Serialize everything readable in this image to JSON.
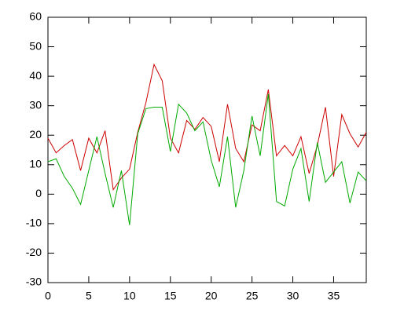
{
  "chart_data": {
    "type": "line",
    "x": [
      0,
      1,
      2,
      3,
      4,
      5,
      6,
      7,
      8,
      9,
      10,
      11,
      12,
      13,
      14,
      15,
      16,
      17,
      18,
      19,
      20,
      21,
      22,
      23,
      24,
      25,
      26,
      27,
      28,
      29,
      30,
      31,
      32,
      33,
      34,
      35,
      36,
      37,
      38,
      39
    ],
    "series": [
      {
        "color": "#cc0000",
        "values": [
          19,
          14,
          16.5,
          18.5,
          8,
          19,
          14,
          21.5,
          1.5,
          5.5,
          8.5,
          21,
          31,
          44,
          38.5,
          19,
          14,
          25,
          22,
          26,
          23,
          11,
          30.5,
          15.5,
          11,
          23.5,
          21.5,
          35.5,
          13,
          16.5,
          13,
          19.5,
          7,
          16.5,
          29.5,
          6,
          27,
          20.5,
          16,
          21
        ]
      },
      {
        "color": "#00aa00",
        "values": [
          11,
          12,
          6,
          2,
          -3.5,
          8,
          19.5,
          7,
          -4.5,
          8,
          -10.5,
          20.5,
          29,
          29.5,
          29.5,
          14.5,
          30.5,
          27.5,
          21.5,
          24.5,
          11.5,
          2.5,
          19.5,
          -4.5,
          8,
          26.5,
          13,
          34,
          -2.5,
          -4,
          8.5,
          15.5,
          -2.5,
          17.5,
          4,
          7.5,
          11,
          -3,
          7.5,
          4.5
        ]
      }
    ],
    "xlim": [
      0,
      39
    ],
    "xticks": [
      0,
      5,
      10,
      15,
      20,
      25,
      30,
      35
    ],
    "ylim": [
      -30,
      60
    ],
    "yticks": [
      -30,
      -20,
      -10,
      0,
      10,
      20,
      30,
      40,
      50,
      60
    ]
  }
}
